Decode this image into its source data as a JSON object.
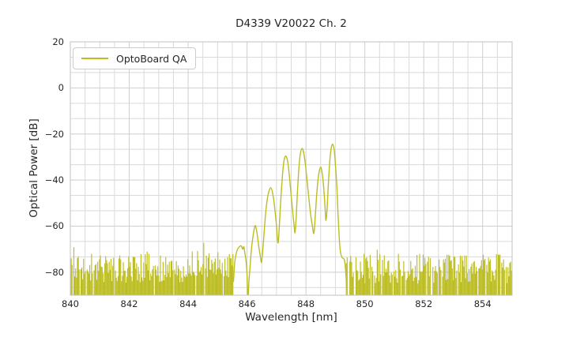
{
  "chart_data": {
    "type": "line",
    "title": "D4339 V20022 Ch. 2",
    "xlabel": "Wavelength [nm]",
    "ylabel": "Optical Power [dB]",
    "xlim": [
      840,
      855
    ],
    "ylim": [
      -90,
      20
    ],
    "xticks": [
      840,
      842,
      844,
      846,
      848,
      850,
      852,
      854
    ],
    "yticks": [
      20,
      0,
      -20,
      -40,
      -60,
      -80
    ],
    "grid": {
      "on": true,
      "x_major_step": 2,
      "x_minor_step": 0.5,
      "y_major_step": 20,
      "y_minor_step": 6.6667
    },
    "legend_position": "upper left",
    "series": [
      {
        "name": "OptoBoard QA",
        "color": "#bcbd22",
        "signal_points": [
          [
            845.54,
            -84
          ],
          [
            845.58,
            -76
          ],
          [
            845.63,
            -72
          ],
          [
            845.68,
            -70
          ],
          [
            845.74,
            -69
          ],
          [
            845.8,
            -68.5
          ],
          [
            845.85,
            -70
          ],
          [
            845.89,
            -69
          ],
          [
            845.93,
            -72
          ],
          [
            845.97,
            -75.5
          ],
          [
            846.0,
            -81
          ],
          [
            846.03,
            -92
          ],
          [
            846.06,
            -85
          ],
          [
            846.1,
            -78
          ],
          [
            846.13,
            -73
          ],
          [
            846.17,
            -67.5
          ],
          [
            846.22,
            -63
          ],
          [
            846.27,
            -59.8
          ],
          [
            846.31,
            -61
          ],
          [
            846.35,
            -64
          ],
          [
            846.4,
            -69
          ],
          [
            846.45,
            -73
          ],
          [
            846.49,
            -75.8
          ],
          [
            846.52,
            -72.5
          ],
          [
            846.57,
            -64.5
          ],
          [
            846.62,
            -56
          ],
          [
            846.68,
            -49
          ],
          [
            846.74,
            -45
          ],
          [
            846.81,
            -43.4
          ],
          [
            846.87,
            -45.8
          ],
          [
            846.93,
            -51
          ],
          [
            846.99,
            -58.5
          ],
          [
            847.05,
            -67.3
          ],
          [
            847.09,
            -61.5
          ],
          [
            847.13,
            -52
          ],
          [
            847.18,
            -42
          ],
          [
            847.23,
            -34
          ],
          [
            847.28,
            -30.2
          ],
          [
            847.33,
            -29.8
          ],
          [
            847.38,
            -32
          ],
          [
            847.44,
            -38.5
          ],
          [
            847.5,
            -47
          ],
          [
            847.56,
            -55
          ],
          [
            847.6,
            -60
          ],
          [
            847.63,
            -62.8
          ],
          [
            847.67,
            -56
          ],
          [
            847.71,
            -45.5
          ],
          [
            847.76,
            -35
          ],
          [
            847.81,
            -28.6
          ],
          [
            847.87,
            -26.3
          ],
          [
            847.92,
            -28
          ],
          [
            847.98,
            -33
          ],
          [
            848.04,
            -40.5
          ],
          [
            848.1,
            -48
          ],
          [
            848.16,
            -55
          ],
          [
            848.22,
            -60
          ],
          [
            848.27,
            -63.1
          ],
          [
            848.32,
            -55
          ],
          [
            848.37,
            -45.5
          ],
          [
            848.43,
            -37.8
          ],
          [
            848.5,
            -34.4
          ],
          [
            848.56,
            -37.8
          ],
          [
            848.61,
            -44.5
          ],
          [
            848.65,
            -52
          ],
          [
            848.68,
            -57.6
          ],
          [
            848.72,
            -52
          ],
          [
            848.76,
            -42
          ],
          [
            848.81,
            -31.8
          ],
          [
            848.86,
            -26
          ],
          [
            848.91,
            -24.5
          ],
          [
            848.96,
            -27
          ],
          [
            849.0,
            -33
          ],
          [
            849.05,
            -43
          ],
          [
            849.09,
            -55
          ],
          [
            849.13,
            -65
          ],
          [
            849.17,
            -71
          ],
          [
            849.21,
            -73.2
          ],
          [
            849.26,
            -74
          ],
          [
            849.3,
            -74.5
          ],
          [
            849.34,
            -78
          ],
          [
            849.38,
            -86
          ]
        ],
        "noise": {
          "seed": 20022,
          "step": 0.03,
          "floor": -97,
          "regions": [
            {
              "from": 840.0,
              "to": 845.52,
              "gap_probability": 0.06,
              "top_base": -76.5,
              "jitter_up": 4.5,
              "jitter_down": 8,
              "tall_probability": 0.05,
              "bump_from": 843.9,
              "bump_to": 845.5,
              "bump_amount": 2.0
            },
            {
              "from": 849.37,
              "to": 855.0,
              "gap_probability": 0.13,
              "top_base": -77,
              "jitter_up": 5,
              "jitter_down": 8,
              "tall_probability": 0.05,
              "bump_from": 0,
              "bump_to": 0,
              "bump_amount": 0
            }
          ]
        }
      }
    ],
    "colors": {
      "background": "#ffffff",
      "text": "#262626",
      "grid_minor": "#dadada",
      "grid_major": "#cecece",
      "spine": "#c2c2c2"
    }
  }
}
